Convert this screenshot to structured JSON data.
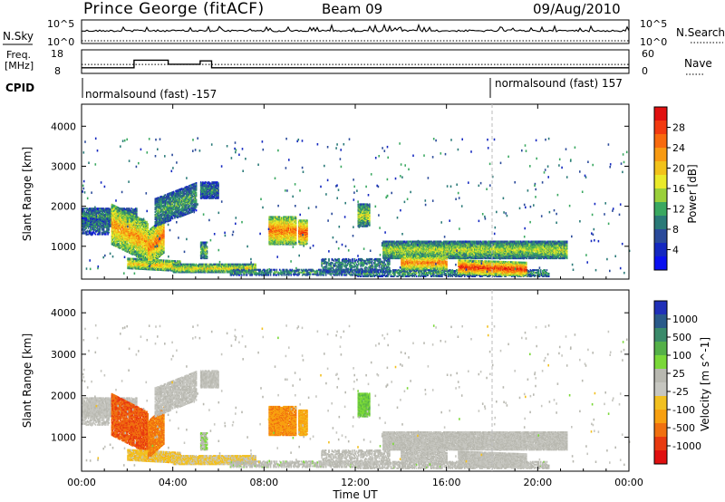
{
  "header": {
    "station": "Prince George (fitACF)",
    "beam": "Beam 09",
    "date": "09/Aug/2010"
  },
  "strip_labels": {
    "nsky": "N.Sky",
    "nsky_tick_hi": "10^5",
    "nsky_tick_lo": "10^0",
    "nsearch": "N.Search",
    "nsearch_tick_hi": "10^5",
    "nsearch_tick_lo": "10^0",
    "freq_line1": "Freq.",
    "freq_line2": "[MHz]",
    "freq_tick_hi": "18",
    "freq_tick_lo": "8",
    "nave": "Nave",
    "nave_tick_hi": "60",
    "nave_tick_lo": "0",
    "cpid": "CPID",
    "cpid_left": "normalsound (fast) -157",
    "cpid_right": "normalsound (fast) 157"
  },
  "power_colorbar": {
    "title": "Power [dB]",
    "ticks": [
      "28",
      "24",
      "20",
      "16",
      "12",
      "8",
      "4"
    ],
    "colors": [
      "#e01010",
      "#f23a10",
      "#f86a0e",
      "#f89a12",
      "#f2c21a",
      "#eaea2a",
      "#9ad03a",
      "#3aa860",
      "#2a7a78",
      "#2a4a9a",
      "#1428c0",
      "#0a10f0"
    ]
  },
  "velocity_colorbar": {
    "title": "Velocity [m s^-1]",
    "ticks": [
      "1000",
      "500",
      "100",
      "25",
      "-25",
      "-100",
      "-500",
      "-1000"
    ],
    "colors": [
      "#2030b8",
      "#2a5a8a",
      "#3a8a6a",
      "#54b048",
      "#7ad838",
      "#b8b8b0",
      "#c6c6c0",
      "#f2c020",
      "#f8a010",
      "#f07010",
      "#e83a10",
      "#e01010"
    ]
  },
  "x_axis": {
    "label": "Time UT",
    "ticks": [
      "00:00",
      "04:00",
      "08:00",
      "12:00",
      "16:00",
      "20:00",
      "00:00"
    ]
  },
  "chart_data": [
    {
      "type": "line",
      "title": "N.Sky / N.Search",
      "yscale": "log",
      "ylim": [
        1,
        100000
      ],
      "x_hours": [
        0,
        2,
        4,
        6,
        8,
        10,
        12,
        14,
        16,
        18,
        20,
        22,
        24
      ]
    },
    {
      "type": "line",
      "title": "Freq. [MHz] / Nave",
      "ylim": [
        8,
        18
      ],
      "series": [
        {
          "name": "Freq.",
          "x": [
            0,
            2.3,
            2.3,
            3.8,
            3.8,
            5.2,
            5.2,
            5.7,
            5.7,
            24
          ],
          "values": [
            10.4,
            10.4,
            13.6,
            13.6,
            11.9,
            11.9,
            13.3,
            13.3,
            10.4,
            10.4
          ]
        },
        {
          "name": "Nave",
          "x": [
            0,
            24
          ],
          "values": [
            11.8,
            11.8
          ]
        }
      ]
    },
    {
      "type": "heatmap",
      "title": "Power [dB]",
      "ylabel": "Slant Range [km]",
      "xlabel": "Time UT",
      "xlim": [
        0,
        24
      ],
      "ylim": [
        180,
        4550
      ],
      "yticks": [
        1000,
        2000,
        3000,
        4000
      ],
      "zlim": [
        0,
        30
      ]
    },
    {
      "type": "heatmap",
      "title": "Velocity [m s^-1]",
      "ylabel": "Slant Range [km]",
      "xlabel": "Time UT",
      "xlim": [
        0,
        24
      ],
      "ylim": [
        180,
        4550
      ],
      "yticks": [
        1000,
        2000,
        3000,
        4000
      ],
      "zlim": [
        -1000,
        1000
      ]
    }
  ]
}
